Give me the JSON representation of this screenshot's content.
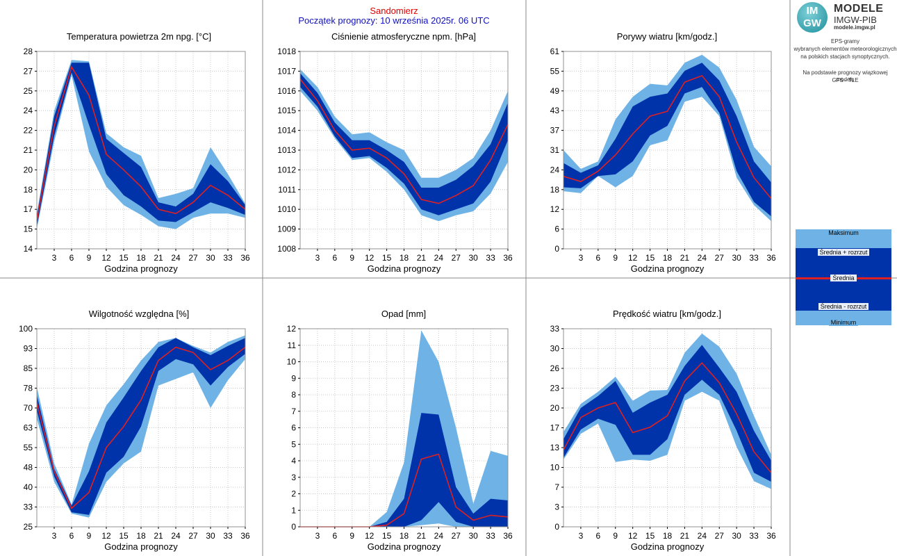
{
  "header": {
    "station": "Sandomierz",
    "start": "Początek prognozy: 10 września 2025r. 06 UTC"
  },
  "logo": {
    "badge_top": "IM",
    "badge_bottom": "GW",
    "line1": "MODELE",
    "line2": "IMGW-PIB",
    "line3": "modele.imgw.pl"
  },
  "description": {
    "line1": "EPS-gramy",
    "line2": "wybranych elementów meteorologicznych",
    "line3": "na polskich stacjach  synoptycznych.",
    "line4": "Na podstawie prognozy wiązkowej modelu",
    "line5": "GFS - TLE"
  },
  "legend": {
    "max": "Maksimum",
    "mean_plus": "Średnia + rozrzut",
    "mean": "Średnia",
    "mean_minus": "Średnia - rozrzut",
    "min": "Minimum"
  },
  "colors": {
    "outer_band": "#6fb3e6",
    "inner_band": "#0033aa",
    "mean_line": "#e02020",
    "grid": "#c8c8c8",
    "frame": "#909090"
  },
  "chart_data": [
    {
      "id": "temp",
      "type": "area",
      "title": "Temperatura powietrza 2m npg. [°C]",
      "xlabel": "Godzina prognozy",
      "x": [
        0,
        3,
        6,
        9,
        12,
        15,
        18,
        21,
        24,
        27,
        30,
        33,
        36
      ],
      "xticks": [
        "3",
        "6",
        "9",
        "12",
        "15",
        "18",
        "21",
        "24",
        "27",
        "30",
        "33",
        "36"
      ],
      "xlim": [
        0,
        36
      ],
      "ylim": [
        14,
        28
      ],
      "yticks": [
        "14",
        "15",
        "17",
        "18",
        "20",
        "21",
        "22",
        "24",
        "25",
        "27",
        "28"
      ],
      "max": [
        16.5,
        23.8,
        27.4,
        27.3,
        22.2,
        21.2,
        20.6,
        17.6,
        17.9,
        18.3,
        21.2,
        19.3,
        17.2
      ],
      "upper": [
        16.3,
        23.4,
        27.2,
        27.2,
        21.8,
        20.8,
        19.8,
        17.3,
        17.0,
        17.9,
        20.0,
        18.8,
        17.1
      ],
      "mean": [
        16.0,
        22.7,
        26.9,
        24.9,
        20.7,
        19.6,
        18.4,
        16.8,
        16.5,
        17.3,
        18.5,
        17.8,
        16.8
      ],
      "lower": [
        15.6,
        22.0,
        26.5,
        22.8,
        19.3,
        17.8,
        17.0,
        16.0,
        15.9,
        16.6,
        17.3,
        16.9,
        16.4
      ],
      "min": [
        15.4,
        21.6,
        26.3,
        20.9,
        18.4,
        17.1,
        16.4,
        15.6,
        15.4,
        16.2,
        16.5,
        16.5,
        16.2
      ]
    },
    {
      "id": "pressure",
      "type": "area",
      "title": "Ciśnienie atmosferyczne npm. [hPa]",
      "xlabel": "Godzina prognozy",
      "x": [
        0,
        3,
        6,
        9,
        12,
        15,
        18,
        21,
        24,
        27,
        30,
        33,
        36
      ],
      "xticks": [
        "3",
        "6",
        "9",
        "12",
        "15",
        "18",
        "21",
        "24",
        "27",
        "30",
        "33",
        "36"
      ],
      "xlim": [
        0,
        36
      ],
      "ylim": [
        1008,
        1018
      ],
      "yticks": [
        "1008",
        "1009",
        "1010",
        "1011",
        "1012",
        "1013",
        "1014",
        "1015",
        "1016",
        "1017",
        "1018"
      ],
      "max": [
        1017.1,
        1016.2,
        1014.7,
        1013.8,
        1013.9,
        1013.4,
        1013.0,
        1011.6,
        1011.6,
        1012.0,
        1012.6,
        1014.0,
        1016.0
      ],
      "upper": [
        1016.9,
        1015.9,
        1014.4,
        1013.5,
        1013.5,
        1013.0,
        1012.4,
        1011.1,
        1011.1,
        1011.5,
        1012.2,
        1013.3,
        1015.4
      ],
      "mean": [
        1016.6,
        1015.5,
        1014.0,
        1013.0,
        1013.1,
        1012.6,
        1011.8,
        1010.5,
        1010.3,
        1010.7,
        1011.2,
        1012.5,
        1014.3
      ],
      "lower": [
        1016.2,
        1015.2,
        1013.7,
        1012.6,
        1012.7,
        1012.1,
        1011.3,
        1010.0,
        1009.7,
        1010.0,
        1010.3,
        1011.4,
        1013.5
      ],
      "min": [
        1016.0,
        1015.0,
        1013.6,
        1012.5,
        1012.6,
        1011.9,
        1011.0,
        1009.7,
        1009.4,
        1009.7,
        1009.9,
        1010.8,
        1012.4
      ]
    },
    {
      "id": "gusts",
      "type": "area",
      "title": "Porywy wiatru [km/godz.]",
      "xlabel": "Godzina prognozy",
      "x": [
        0,
        3,
        6,
        9,
        12,
        15,
        18,
        21,
        24,
        27,
        30,
        33,
        36
      ],
      "xticks": [
        "3",
        "6",
        "9",
        "12",
        "15",
        "18",
        "21",
        "24",
        "27",
        "30",
        "33",
        "36"
      ],
      "xlim": [
        0,
        36
      ],
      "ylim": [
        0,
        61
      ],
      "yticks": [
        "0",
        "6",
        "12",
        "18",
        "24",
        "31",
        "37",
        "43",
        "49",
        "55",
        "61"
      ],
      "max": [
        30.5,
        24.7,
        27.0,
        40.0,
        47.0,
        51.0,
        50.5,
        57.5,
        60.0,
        56.0,
        46.0,
        31.5,
        25.5
      ],
      "upper": [
        26.5,
        23.5,
        25.8,
        34.0,
        44.0,
        47.0,
        48.0,
        55.0,
        57.5,
        52.0,
        41.0,
        27.0,
        20.5
      ],
      "mean": [
        22.4,
        20.8,
        24.0,
        29.0,
        35.5,
        41.0,
        42.5,
        51.5,
        53.5,
        47.0,
        33.0,
        22.0,
        15.5
      ],
      "lower": [
        19.0,
        18.7,
        22.5,
        23.0,
        27.0,
        35.0,
        38.0,
        48.0,
        50.0,
        42.0,
        24.0,
        14.5,
        10.0
      ],
      "min": [
        17.8,
        17.2,
        22.5,
        19.0,
        22.5,
        32.0,
        33.5,
        45.5,
        47.0,
        41.0,
        22.0,
        13.5,
        8.5
      ]
    },
    {
      "id": "humidity",
      "type": "area",
      "title": "Wilgotność względna [%]",
      "xlabel": "Godzina prognozy",
      "x": [
        0,
        3,
        6,
        9,
        12,
        15,
        18,
        21,
        24,
        27,
        30,
        33,
        36
      ],
      "xticks": [
        "3",
        "6",
        "9",
        "12",
        "15",
        "18",
        "21",
        "24",
        "27",
        "30",
        "33",
        "36"
      ],
      "xlim": [
        0,
        36
      ],
      "ylim": [
        25,
        100
      ],
      "yticks": [
        "25",
        "33",
        "40",
        "48",
        "55",
        "63",
        "70",
        "78",
        "85",
        "93",
        "100"
      ],
      "max": [
        78.0,
        49.0,
        33.5,
        56.5,
        71.0,
        79.0,
        88.0,
        95.0,
        96.5,
        93.5,
        91.0,
        95.0,
        97.5
      ],
      "upper": [
        75.0,
        47.0,
        33.0,
        46.0,
        64.5,
        74.0,
        84.0,
        93.0,
        96.5,
        93.0,
        90.0,
        93.5,
        96.5
      ],
      "mean": [
        72.0,
        46.0,
        32.0,
        38.0,
        55.0,
        63.0,
        73.0,
        88.0,
        93.0,
        91.0,
        84.5,
        88.0,
        93.0
      ],
      "lower": [
        69.0,
        44.0,
        30.5,
        29.5,
        45.5,
        51.5,
        63.0,
        84.0,
        88.5,
        86.5,
        78.5,
        85.5,
        90.5
      ],
      "min": [
        66.0,
        42.0,
        30.0,
        28.5,
        42.0,
        49.0,
        53.5,
        78.5,
        81.0,
        83.5,
        70.0,
        80.5,
        88.5
      ]
    },
    {
      "id": "precip",
      "type": "area",
      "title": "Opad [mm]",
      "xlabel": "Godzina prognozy",
      "x": [
        0,
        3,
        6,
        9,
        12,
        15,
        18,
        21,
        24,
        27,
        30,
        33,
        36
      ],
      "xticks": [
        "3",
        "6",
        "9",
        "12",
        "15",
        "18",
        "21",
        "24",
        "27",
        "30",
        "33",
        "36"
      ],
      "xlim": [
        0,
        36
      ],
      "ylim": [
        0,
        12
      ],
      "yticks": [
        "0",
        "1",
        "2",
        "3",
        "4",
        "5",
        "6",
        "7",
        "8",
        "9",
        "10",
        "11",
        "12"
      ],
      "max": [
        0,
        0,
        0,
        0,
        0,
        0.9,
        3.9,
        11.9,
        10.0,
        6.0,
        1.4,
        4.6,
        4.3
      ],
      "upper": [
        0,
        0,
        0,
        0,
        0,
        0.3,
        1.7,
        6.9,
        6.8,
        2.4,
        0.8,
        1.7,
        1.6
      ],
      "mean": [
        0,
        0,
        0,
        0,
        0,
        0.1,
        0.8,
        4.1,
        4.4,
        1.2,
        0.4,
        0.7,
        0.6
      ],
      "lower": [
        0,
        0,
        0,
        0,
        0,
        0,
        0,
        0.4,
        1.5,
        0.3,
        0,
        0,
        0
      ],
      "min": [
        0,
        0,
        0,
        0,
        0,
        0,
        0,
        0.1,
        0.2,
        0,
        0,
        0,
        0
      ]
    },
    {
      "id": "wind",
      "type": "area",
      "title": "Prędkość wiatru [km/godz.]",
      "xlabel": "Godzina prognozy",
      "x": [
        0,
        3,
        6,
        9,
        12,
        15,
        18,
        21,
        24,
        27,
        30,
        33,
        36
      ],
      "xticks": [
        "3",
        "6",
        "9",
        "12",
        "15",
        "18",
        "21",
        "24",
        "27",
        "30",
        "33",
        "36"
      ],
      "xlim": [
        0,
        36
      ],
      "ylim": [
        0,
        33
      ],
      "yticks": [
        "0",
        "3",
        "7",
        "10",
        "13",
        "17",
        "20",
        "23",
        "26",
        "30",
        "33"
      ],
      "max": [
        15.8,
        20.5,
        22.5,
        25.0,
        21.0,
        22.7,
        22.8,
        29.0,
        32.2,
        30.0,
        25.5,
        18.5,
        12.0
      ],
      "upper": [
        14.6,
        19.8,
        21.8,
        24.3,
        19.0,
        20.7,
        22.0,
        26.8,
        30.3,
        26.5,
        22.5,
        16.0,
        11.0
      ],
      "mean": [
        12.8,
        18.2,
        19.8,
        20.7,
        15.7,
        16.6,
        18.5,
        24.3,
        27.3,
        24.0,
        18.8,
        12.5,
        9.0
      ],
      "lower": [
        11.5,
        16.2,
        18.0,
        17.0,
        12.0,
        12.0,
        14.6,
        22.0,
        24.5,
        22.0,
        16.0,
        9.0,
        7.5
      ],
      "min": [
        11.2,
        15.5,
        17.2,
        10.8,
        11.2,
        11.0,
        12.0,
        21.0,
        22.5,
        21.0,
        13.3,
        7.6,
        6.3
      ]
    }
  ]
}
